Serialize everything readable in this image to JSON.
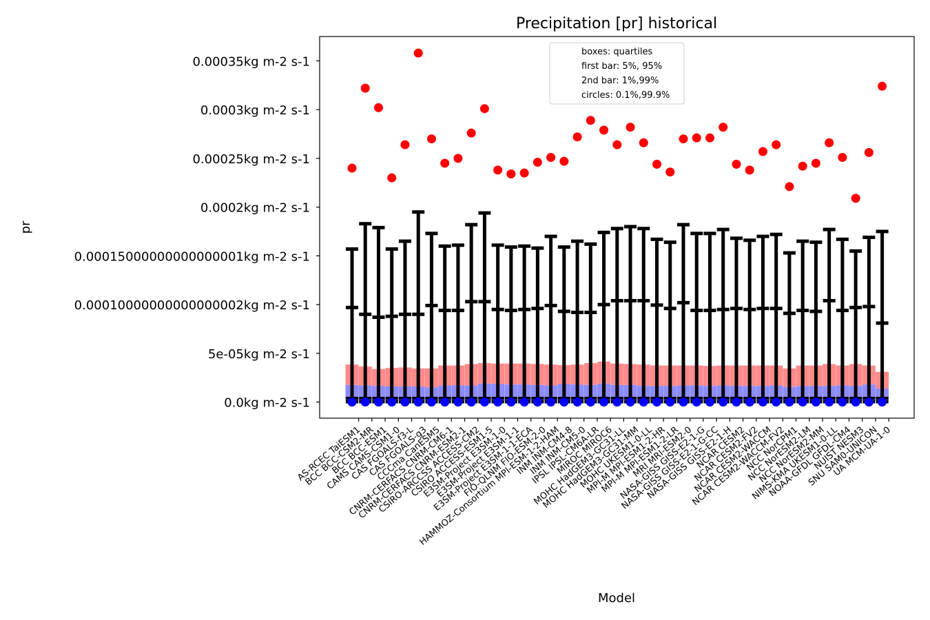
{
  "chart_data": {
    "type": "box",
    "title": "Precipitation [pr] historical",
    "xlabel": "Model",
    "ylabel": "pr",
    "ylim": [
      -1.65e-05,
      0.000375
    ],
    "yticks": [
      {
        "value": 0.0,
        "label": "0.0kg m-2 s-1"
      },
      {
        "value": 5e-05,
        "label": "5e-05kg m-2 s-1"
      },
      {
        "value": 0.0001,
        "label": "0.00010000000000000002kg m-2 s-1"
      },
      {
        "value": 0.00015,
        "label": "0.00015000000000000001kg m-2 s-1"
      },
      {
        "value": 0.0002,
        "label": "0.0002kg m-2 s-1"
      },
      {
        "value": 0.00025,
        "label": "0.00025kg m-2 s-1"
      },
      {
        "value": 0.0003,
        "label": "0.0003kg m-2 s-1"
      },
      {
        "value": 0.00035,
        "label": "0.00035kg m-2 s-1"
      }
    ],
    "legend": {
      "placement": "top-center",
      "lines": [
        "boxes: quartiles",
        "first bar: 5%, 95%",
        "2nd bar: 1%,99%",
        "circles: 0.1%,99.9%"
      ]
    },
    "colors": {
      "upper_box": "#ff8a8a",
      "lower_box": "#8c8cff",
      "whisker": "#000000",
      "high_circle": "#ff0000",
      "low_circle": "#0000ff"
    },
    "series_keys": [
      "q1",
      "median",
      "q3",
      "p5",
      "p95",
      "p1",
      "p99",
      "p0_1",
      "p99_9"
    ],
    "models": [
      {
        "name": "AS-RCEC TaiESM1",
        "q1": 1.5e-06,
        "median": 1.75e-05,
        "q3": 3.85e-05,
        "p5": 5e-07,
        "p95": 9.7e-05,
        "p1": 5e-07,
        "p99": 0.000157,
        "p0_1": 0.0,
        "p99_9": 0.00024
      },
      {
        "name": "BCC BCC-CSM2-MR",
        "q1": 1.5e-06,
        "median": 1.7e-05,
        "q3": 3.65e-05,
        "p5": 5e-07,
        "p95": 9e-05,
        "p1": 5e-07,
        "p99": 0.000183,
        "p0_1": 0.0,
        "p99_9": 0.000322
      },
      {
        "name": "BCC BCC-ESM1",
        "q1": 1.5e-06,
        "median": 1.65e-05,
        "q3": 3.4e-05,
        "p5": 5e-07,
        "p95": 8.7e-05,
        "p1": 5e-07,
        "p99": 0.000179,
        "p0_1": 0.0,
        "p99_9": 0.000302
      },
      {
        "name": "CAMS CAMS-CSM1-0",
        "q1": 1.5e-06,
        "median": 1.6e-05,
        "q3": 3.5e-05,
        "p5": 5e-07,
        "p95": 8.8e-05,
        "p1": 5e-07,
        "p99": 0.000157,
        "p0_1": 0.0,
        "p99_9": 0.00023
      },
      {
        "name": "CAS FGOALS-f3-L",
        "q1": 1.5e-06,
        "median": 1.6e-05,
        "q3": 3.55e-05,
        "p5": 5e-07,
        "p95": 9e-05,
        "p1": 5e-07,
        "p99": 0.000165,
        "p0_1": 0.0,
        "p99_9": 0.000264
      },
      {
        "name": "CAS FGOALS-g3",
        "q1": 1.5e-06,
        "median": 1.6e-05,
        "q3": 3.45e-05,
        "p5": 5e-07,
        "p95": 9e-05,
        "p1": 5e-07,
        "p99": 0.000195,
        "p0_1": 0.0,
        "p99_9": 0.000358
      },
      {
        "name": "CCCma CanESM5",
        "q1": 1.5e-06,
        "median": 1.5e-05,
        "q3": 3.45e-05,
        "p5": 5e-07,
        "p95": 9.9e-05,
        "p1": 5e-07,
        "p99": 0.000173,
        "p0_1": 0.0,
        "p99_9": 0.00027
      },
      {
        "name": "CNRM-CERFACS CNRM-CM6-1",
        "q1": 1.5e-06,
        "median": 1.7e-05,
        "q3": 3.75e-05,
        "p5": 5e-07,
        "p95": 9.4e-05,
        "p1": 5e-07,
        "p99": 0.00016,
        "p0_1": 0.0,
        "p99_9": 0.000245
      },
      {
        "name": "CNRM-CERFACS CNRM-ESM2-1",
        "q1": 1.5e-06,
        "median": 1.7e-05,
        "q3": 3.75e-05,
        "p5": 5e-07,
        "p95": 9.4e-05,
        "p1": 5e-07,
        "p99": 0.000161,
        "p0_1": 0.0,
        "p99_9": 0.00025
      },
      {
        "name": "CSIRO-ARCCSS ACCESS-CM2",
        "q1": 1.5e-06,
        "median": 1.7e-05,
        "q3": 3.9e-05,
        "p5": 5e-07,
        "p95": 0.000103,
        "p1": 5e-07,
        "p99": 0.000182,
        "p0_1": 0.0,
        "p99_9": 0.000276
      },
      {
        "name": "CSIRO ACCESS-ESM1-5",
        "q1": 1.5e-06,
        "median": 1.9e-05,
        "q3": 4e-05,
        "p5": 5e-07,
        "p95": 0.000103,
        "p1": 5e-07,
        "p99": 0.000194,
        "p0_1": 0.0,
        "p99_9": 0.000301
      },
      {
        "name": "E3SM-Project E3SM-1-0",
        "q1": 1.5e-06,
        "median": 1.85e-05,
        "q3": 3.95e-05,
        "p5": 5e-07,
        "p95": 9.5e-05,
        "p1": 5e-07,
        "p99": 0.000161,
        "p0_1": 0.0,
        "p99_9": 0.000238
      },
      {
        "name": "E3SM-Project E3SM-1-1",
        "q1": 1.5e-06,
        "median": 1.8e-05,
        "q3": 3.95e-05,
        "p5": 5e-07,
        "p95": 9.4e-05,
        "p1": 5e-07,
        "p99": 0.000159,
        "p0_1": 0.0,
        "p99_9": 0.000234
      },
      {
        "name": "E3SM-Project E3SM-1-1-ECA",
        "q1": 1.5e-06,
        "median": 1.8e-05,
        "q3": 3.95e-05,
        "p5": 5e-07,
        "p95": 9.5e-05,
        "p1": 5e-07,
        "p99": 0.00016,
        "p0_1": 0.0,
        "p99_9": 0.000235
      },
      {
        "name": "FIO-QLNM FIO-ESM-2-0",
        "q1": 1.5e-06,
        "median": 1.75e-05,
        "q3": 3.9e-05,
        "p5": 5e-07,
        "p95": 9.6e-05,
        "p1": 5e-07,
        "p99": 0.000158,
        "p0_1": 0.0,
        "p99_9": 0.000246
      },
      {
        "name": "HAMMOZ-Consortium MPI-ESM-1-2-HAM",
        "q1": 1.5e-06,
        "median": 1.7e-05,
        "q3": 3.85e-05,
        "p5": 5e-07,
        "p95": 9.9e-05,
        "p1": 5e-07,
        "p99": 0.00017,
        "p0_1": 0.0,
        "p99_9": 0.000251
      },
      {
        "name": "INM INM-CM4-8",
        "q1": 1.5e-06,
        "median": 1.85e-05,
        "q3": 3.8e-05,
        "p5": 5e-07,
        "p95": 9.3e-05,
        "p1": 5e-07,
        "p99": 0.000159,
        "p0_1": 0.0,
        "p99_9": 0.000247
      },
      {
        "name": "INM INM-CM5-0",
        "q1": 1.5e-06,
        "median": 1.8e-05,
        "q3": 3.85e-05,
        "p5": 5e-07,
        "p95": 9.2e-05,
        "p1": 5e-07,
        "p99": 0.000165,
        "p0_1": 0.0,
        "p99_9": 0.000272
      },
      {
        "name": "IPSL IPSL-CM6A-LR",
        "q1": 1.5e-06,
        "median": 1.75e-05,
        "q3": 4e-05,
        "p5": 5e-07,
        "p95": 9.2e-05,
        "p1": 5e-07,
        "p99": 0.000162,
        "p0_1": 0.0,
        "p99_9": 0.000289
      },
      {
        "name": "MIROC MIROC6",
        "q1": 1.5e-06,
        "median": 1.9e-05,
        "q3": 4.15e-05,
        "p5": 5e-07,
        "p95": 0.0001,
        "p1": 5e-07,
        "p99": 0.000174,
        "p0_1": 0.0,
        "p99_9": 0.000279
      },
      {
        "name": "MOHC HadGEM3-GC31-LL",
        "q1": 1.5e-06,
        "median": 1.75e-05,
        "q3": 3.95e-05,
        "p5": 5e-07,
        "p95": 0.000104,
        "p1": 5e-07,
        "p99": 0.000178,
        "p0_1": 0.0,
        "p99_9": 0.000264
      },
      {
        "name": "MOHC HadGEM3-GC31-MM",
        "q1": 1.5e-06,
        "median": 1.75e-05,
        "q3": 3.9e-05,
        "p5": 5e-07,
        "p95": 0.000104,
        "p1": 5e-07,
        "p99": 0.00018,
        "p0_1": 0.0,
        "p99_9": 0.000282
      },
      {
        "name": "MOHC UKESM1-0-LL",
        "q1": 1.5e-06,
        "median": 1.65e-05,
        "q3": 3.85e-05,
        "p5": 5e-07,
        "p95": 0.000104,
        "p1": 5e-07,
        "p99": 0.000178,
        "p0_1": 0.0,
        "p99_9": 0.000266
      },
      {
        "name": "MPI-M MPI-ESM1-2-HR",
        "q1": 1.5e-06,
        "median": 1.65e-05,
        "q3": 3.75e-05,
        "p5": 5e-07,
        "p95": 9.95e-05,
        "p1": 5e-07,
        "p99": 0.000167,
        "p0_1": 0.0,
        "p99_9": 0.000244
      },
      {
        "name": "MPI-M MPI-ESM1-2-LR",
        "q1": 1.5e-06,
        "median": 1.65e-05,
        "q3": 3.75e-05,
        "p5": 5e-07,
        "p95": 9.6e-05,
        "p1": 5e-07,
        "p99": 0.000164,
        "p0_1": 0.0,
        "p99_9": 0.000236
      },
      {
        "name": "MRI MRI-ESM2-0",
        "q1": 1.5e-06,
        "median": 1.7e-05,
        "q3": 3.75e-05,
        "p5": 5e-07,
        "p95": 0.000102,
        "p1": 5e-07,
        "p99": 0.000182,
        "p0_1": 0.0,
        "p99_9": 0.00027
      },
      {
        "name": "NASA-GISS GISS-E2-1-G",
        "q1": 1.5e-06,
        "median": 1.7e-05,
        "q3": 3.75e-05,
        "p5": 5e-07,
        "p95": 9.4e-05,
        "p1": 5e-07,
        "p99": 0.000173,
        "p0_1": 0.0,
        "p99_9": 0.000271
      },
      {
        "name": "NASA-GISS GISS-E2-1-G-CC",
        "q1": 1.5e-06,
        "median": 1.65e-05,
        "q3": 3.7e-05,
        "p5": 5e-07,
        "p95": 9.4e-05,
        "p1": 5e-07,
        "p99": 0.000173,
        "p0_1": 0.0,
        "p99_9": 0.000271
      },
      {
        "name": "NASA-GISS GISS-E2-1-H",
        "q1": 1.5e-06,
        "median": 1.7e-05,
        "q3": 3.75e-05,
        "p5": 5e-07,
        "p95": 9.5e-05,
        "p1": 5e-07,
        "p99": 0.000177,
        "p0_1": 0.0,
        "p99_9": 0.000282
      },
      {
        "name": "NCAR CESM2",
        "q1": 1.5e-06,
        "median": 1.65e-05,
        "q3": 3.75e-05,
        "p5": 5e-07,
        "p95": 9.6e-05,
        "p1": 5e-07,
        "p99": 0.000168,
        "p0_1": 0.0,
        "p99_9": 0.000244
      },
      {
        "name": "NCAR CESM2-FV2",
        "q1": 1.5e-06,
        "median": 1.65e-05,
        "q3": 3.75e-05,
        "p5": 5e-07,
        "p95": 9.5e-05,
        "p1": 5e-07,
        "p99": 0.000166,
        "p0_1": 0.0,
        "p99_9": 0.000238
      },
      {
        "name": "NCAR CESM2-WACCM",
        "q1": 1.5e-06,
        "median": 1.65e-05,
        "q3": 3.75e-05,
        "p5": 5e-07,
        "p95": 9.6e-05,
        "p1": 5e-07,
        "p99": 0.00017,
        "p0_1": 0.0,
        "p99_9": 0.000257
      },
      {
        "name": "NCAR CESM2-WACCM-FV2",
        "q1": 1.5e-06,
        "median": 1.7e-05,
        "q3": 3.75e-05,
        "p5": 5e-07,
        "p95": 9.6e-05,
        "p1": 5e-07,
        "p99": 0.000172,
        "p0_1": 0.0,
        "p99_9": 0.000264
      },
      {
        "name": "NCC NorCPM1",
        "q1": 1.5e-06,
        "median": 1.55e-05,
        "q3": 3.45e-05,
        "p5": 5e-07,
        "p95": 9.1e-05,
        "p1": 5e-07,
        "p99": 0.000153,
        "p0_1": 0.0,
        "p99_9": 0.000221
      },
      {
        "name": "NCC NorESM2-LM",
        "q1": 1.5e-06,
        "median": 1.65e-05,
        "q3": 3.75e-05,
        "p5": 5e-07,
        "p95": 9.4e-05,
        "p1": 5e-07,
        "p99": 0.000165,
        "p0_1": 0.0,
        "p99_9": 0.000242
      },
      {
        "name": "NCC NorESM2-MM",
        "q1": 1.5e-06,
        "median": 1.65e-05,
        "q3": 3.75e-05,
        "p5": 5e-07,
        "p95": 9.3e-05,
        "p1": 5e-07,
        "p99": 0.000164,
        "p0_1": 0.0,
        "p99_9": 0.000245
      },
      {
        "name": "NIMS-KMA UKESM1-0-LL",
        "q1": 1.5e-06,
        "median": 1.65e-05,
        "q3": 3.9e-05,
        "p5": 5e-07,
        "p95": 0.000104,
        "p1": 5e-07,
        "p99": 0.000177,
        "p0_1": 0.0,
        "p99_9": 0.000266
      },
      {
        "name": "NOAA-GFDL GFDL-CM4",
        "q1": 1.5e-06,
        "median": 1.7e-05,
        "q3": 3.75e-05,
        "p5": 5e-07,
        "p95": 9.4e-05,
        "p1": 5e-07,
        "p99": 0.000167,
        "p0_1": 0.0,
        "p99_9": 0.000251
      },
      {
        "name": "NUIST NESM3",
        "q1": 1.5e-06,
        "median": 1.65e-05,
        "q3": 3.9e-05,
        "p5": 5e-07,
        "p95": 9.7e-05,
        "p1": 5e-07,
        "p99": 0.000155,
        "p0_1": 0.0,
        "p99_9": 0.000209
      },
      {
        "name": "SNU SAM0-UNICON",
        "q1": 1.5e-06,
        "median": 1.8e-05,
        "q3": 3.75e-05,
        "p5": 5e-07,
        "p95": 9.8e-05,
        "p1": 5e-07,
        "p99": 0.000169,
        "p0_1": 0.0,
        "p99_9": 0.000256
      },
      {
        "name": "UA MCM-UA-1-0",
        "q1": 1.5e-06,
        "median": 1.4e-05,
        "q3": 3.1e-05,
        "p5": 5e-07,
        "p95": 8.1e-05,
        "p1": 5e-07,
        "p99": 0.000175,
        "p0_1": 0.0,
        "p99_9": 0.000324
      }
    ]
  }
}
